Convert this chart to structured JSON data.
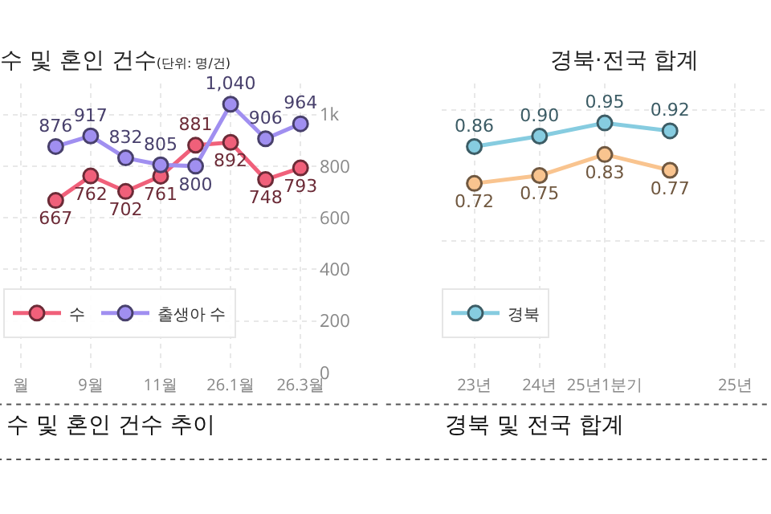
{
  "chart_data": [
    {
      "type": "line",
      "title": "수 및 혼인 건수",
      "subtitle": "(단위: 명/건)",
      "categories": [
        "월",
        null,
        "9월",
        null,
        "11월",
        null,
        "26.1월",
        null,
        "26.3월"
      ],
      "series": [
        {
          "name": "수",
          "color": "#f0607a",
          "values": [
            null,
            667,
            762,
            702,
            761,
            881,
            892,
            748,
            793
          ],
          "value_labels": [
            null,
            "667",
            "762",
            "702",
            "761",
            "881",
            "892",
            "748",
            "793"
          ]
        },
        {
          "name": "출생아 수",
          "color": "#a08ff0",
          "values": [
            null,
            876,
            917,
            832,
            805,
            800,
            1040,
            906,
            964
          ],
          "value_labels": [
            null,
            "876",
            "917",
            "832",
            "805",
            "800",
            "1,040",
            "906",
            "964"
          ]
        }
      ],
      "ylim": [
        0,
        1120
      ],
      "yticks": [
        0,
        200,
        400,
        600,
        800,
        {
          "value": 1000,
          "label": "1k"
        }
      ],
      "grid": true,
      "legend": "bottom",
      "marker": "circle",
      "annotations": [
        "수 및 혼인 건수 추이"
      ]
    },
    {
      "type": "line",
      "title": "경북·전국 합계",
      "categories": [
        "23년",
        "24년",
        "25년1분기",
        null,
        "25년"
      ],
      "series": [
        {
          "name": "경북",
          "color": "#86cce0",
          "values": [
            0.86,
            0.9,
            0.95,
            0.92,
            null
          ],
          "value_labels": [
            "0.86",
            "0.90",
            "0.95",
            "0.92",
            null
          ]
        },
        {
          "color": "#f9c48f",
          "values": [
            0.72,
            0.75,
            0.83,
            0.77,
            null
          ],
          "value_labels": [
            "0.72",
            "0.75",
            "0.83",
            "0.77",
            null
          ]
        }
      ],
      "ylim": [
        0,
        1.1
      ],
      "tick_labels": "x",
      "grid": true,
      "legend": "bottom",
      "marker": "circle",
      "annotations": [
        "경북 및 전국 합계"
      ]
    }
  ]
}
